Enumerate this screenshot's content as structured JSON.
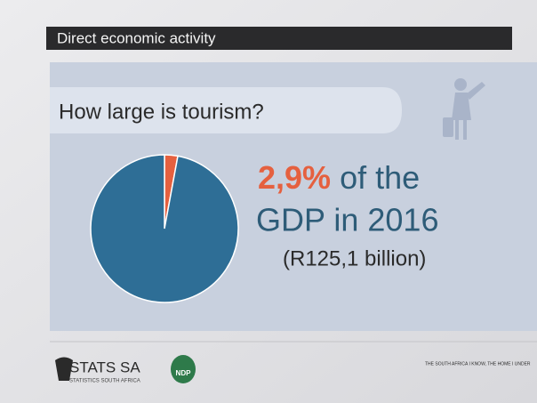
{
  "header": "Direct economic activity",
  "question": "How large is tourism?",
  "headline": {
    "highlight": "2,9%",
    "rest": "of the",
    "line2": "GDP in 2016",
    "amount": "(R125,1 billion)"
  },
  "chart_data": {
    "type": "pie",
    "values": [
      2.9,
      97.1
    ],
    "colors": [
      "#e5603f",
      "#2e6e96"
    ]
  },
  "footer": {
    "logo": "STATS SA",
    "logo_sub": "STATISTICS SOUTH AFRICA",
    "badge": "NDP",
    "slogan": "THE SOUTH AFRICA I KNOW, THE HOME I UNDER"
  }
}
